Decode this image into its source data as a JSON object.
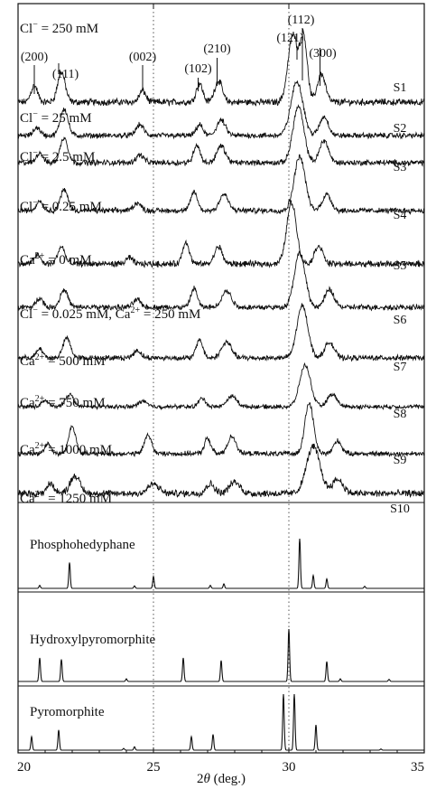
{
  "chart_data": {
    "type": "line",
    "xlabel": "2θ (deg.)",
    "xlim": [
      20,
      35
    ],
    "x_ticks": [
      "20",
      "25",
      "30",
      "35"
    ],
    "reference_lines_x": [
      25,
      30
    ],
    "peak_labels": [
      {
        "label": "(200)",
        "x": 20.6
      },
      {
        "label": "(111)",
        "x": 21.7
      },
      {
        "label": "(002)",
        "x": 24.6
      },
      {
        "label": "(102)",
        "x": 26.6
      },
      {
        "label": "(210)",
        "x": 27.3
      },
      {
        "label": "(121)",
        "x": 30.1
      },
      {
        "label": "(112)",
        "x": 30.45
      },
      {
        "label": "(300)",
        "x": 31.1
      }
    ],
    "series": [
      {
        "name": "S1",
        "condition": "Cl⁻ = 250 mM",
        "noise": 0.04,
        "peaks": [
          [
            20.6,
            0.25,
            0.12
          ],
          [
            21.6,
            0.45,
            0.14
          ],
          [
            24.6,
            0.17,
            0.12
          ],
          [
            26.7,
            0.28,
            0.12
          ],
          [
            27.4,
            0.32,
            0.14
          ],
          [
            30.15,
            1.0,
            0.18
          ],
          [
            30.55,
            0.95,
            0.13
          ],
          [
            31.2,
            0.42,
            0.15
          ]
        ]
      },
      {
        "name": "S2",
        "condition": "Cl⁻ = 25 mM",
        "noise": 0.04,
        "peaks": [
          [
            20.7,
            0.15,
            0.12
          ],
          [
            21.7,
            0.5,
            0.14
          ],
          [
            24.5,
            0.2,
            0.14
          ],
          [
            26.7,
            0.2,
            0.12
          ],
          [
            27.5,
            0.28,
            0.16
          ],
          [
            30.3,
            1.0,
            0.22
          ],
          [
            31.3,
            0.35,
            0.16
          ]
        ]
      },
      {
        "name": "S3",
        "condition": "Cl⁻ = 2.5 mM",
        "noise": 0.04,
        "peaks": [
          [
            20.8,
            0.18,
            0.12
          ],
          [
            21.7,
            0.45,
            0.14
          ],
          [
            24.5,
            0.14,
            0.14
          ],
          [
            26.6,
            0.32,
            0.12
          ],
          [
            27.5,
            0.3,
            0.16
          ],
          [
            30.35,
            1.0,
            0.2
          ],
          [
            31.3,
            0.4,
            0.16
          ]
        ]
      },
      {
        "name": "S4",
        "condition": "Cl⁻ = 0.25 mM",
        "noise": 0.04,
        "peaks": [
          [
            20.8,
            0.18,
            0.12
          ],
          [
            21.7,
            0.38,
            0.14
          ],
          [
            24.4,
            0.14,
            0.14
          ],
          [
            26.5,
            0.35,
            0.12
          ],
          [
            27.6,
            0.3,
            0.16
          ],
          [
            30.4,
            1.0,
            0.2
          ],
          [
            31.4,
            0.3,
            0.16
          ]
        ]
      },
      {
        "name": "S5",
        "condition": "Ca²⁺ = 0 mM",
        "noise": 0.04,
        "peaks": [
          [
            20.7,
            0.15,
            0.12
          ],
          [
            21.6,
            0.28,
            0.13
          ],
          [
            24.1,
            0.1,
            0.12
          ],
          [
            26.2,
            0.36,
            0.12
          ],
          [
            27.4,
            0.28,
            0.14
          ],
          [
            30.1,
            1.0,
            0.18
          ],
          [
            31.1,
            0.3,
            0.15
          ]
        ]
      },
      {
        "name": "S6",
        "condition": "Cl⁻ = 0.025 mM, Ca²⁺ = 250 mM",
        "noise": 0.04,
        "peaks": [
          [
            20.8,
            0.18,
            0.12
          ],
          [
            21.7,
            0.33,
            0.14
          ],
          [
            24.4,
            0.14,
            0.14
          ],
          [
            26.5,
            0.35,
            0.12
          ],
          [
            27.7,
            0.3,
            0.18
          ],
          [
            30.4,
            1.0,
            0.2
          ],
          [
            31.5,
            0.32,
            0.17
          ]
        ]
      },
      {
        "name": "S7",
        "condition": "Ca²⁺ = 500 mM",
        "noise": 0.04,
        "peaks": [
          [
            20.8,
            0.17,
            0.12
          ],
          [
            21.8,
            0.38,
            0.14
          ],
          [
            24.4,
            0.14,
            0.14
          ],
          [
            26.7,
            0.35,
            0.12
          ],
          [
            27.7,
            0.3,
            0.18
          ],
          [
            30.5,
            1.0,
            0.2
          ],
          [
            31.5,
            0.3,
            0.17
          ]
        ]
      },
      {
        "name": "S8",
        "condition": "Ca²⁺ = 750 mM",
        "noise": 0.04,
        "peaks": [
          [
            21.0,
            0.15,
            0.12
          ],
          [
            21.9,
            0.3,
            0.15
          ],
          [
            24.6,
            0.14,
            0.15
          ],
          [
            26.8,
            0.2,
            0.13
          ],
          [
            27.9,
            0.25,
            0.18
          ],
          [
            30.6,
            1.0,
            0.2
          ],
          [
            31.6,
            0.3,
            0.17
          ]
        ]
      },
      {
        "name": "S9",
        "condition": "Ca²⁺ = 1000 mM",
        "noise": 0.04,
        "peaks": [
          [
            21.1,
            0.2,
            0.12
          ],
          [
            22.0,
            0.55,
            0.13
          ],
          [
            24.8,
            0.38,
            0.13
          ],
          [
            27.0,
            0.3,
            0.12
          ],
          [
            27.9,
            0.35,
            0.15
          ],
          [
            30.75,
            1.0,
            0.16
          ],
          [
            31.8,
            0.25,
            0.15
          ]
        ]
      },
      {
        "name": "S10",
        "condition": "Ca²⁺ = 1250 mM",
        "noise": 0.06,
        "peaks": [
          [
            21.2,
            0.2,
            0.14
          ],
          [
            22.1,
            0.38,
            0.18
          ],
          [
            25.0,
            0.2,
            0.2
          ],
          [
            27.1,
            0.2,
            0.16
          ],
          [
            28.0,
            0.24,
            0.2
          ],
          [
            30.9,
            1.0,
            0.25
          ],
          [
            31.8,
            0.3,
            0.2
          ]
        ]
      }
    ],
    "references": [
      {
        "name": "Phosphohedyphane",
        "peaks": [
          [
            20.8,
            0.06
          ],
          [
            21.9,
            0.52
          ],
          [
            24.3,
            0.05
          ],
          [
            25.0,
            0.24
          ],
          [
            27.1,
            0.06
          ],
          [
            27.6,
            0.09
          ],
          [
            30.4,
            1.0
          ],
          [
            30.9,
            0.26
          ],
          [
            31.4,
            0.19
          ],
          [
            32.8,
            0.04
          ]
        ]
      },
      {
        "name": "Hydroxylpyromorphite",
        "peaks": [
          [
            20.8,
            0.45
          ],
          [
            21.6,
            0.42
          ],
          [
            24.0,
            0.05
          ],
          [
            26.1,
            0.45
          ],
          [
            27.5,
            0.4
          ],
          [
            30.0,
            1.0
          ],
          [
            31.4,
            0.38
          ],
          [
            31.9,
            0.05
          ],
          [
            33.7,
            0.04
          ]
        ]
      },
      {
        "name": "Pyromorphite",
        "peaks": [
          [
            20.5,
            0.24
          ],
          [
            21.5,
            0.36
          ],
          [
            23.9,
            0.03
          ],
          [
            24.3,
            0.06
          ],
          [
            26.4,
            0.24
          ],
          [
            27.2,
            0.28
          ],
          [
            29.8,
            1.0
          ],
          [
            30.2,
            1.0
          ],
          [
            31.0,
            0.45
          ],
          [
            33.4,
            0.02
          ]
        ]
      }
    ]
  }
}
